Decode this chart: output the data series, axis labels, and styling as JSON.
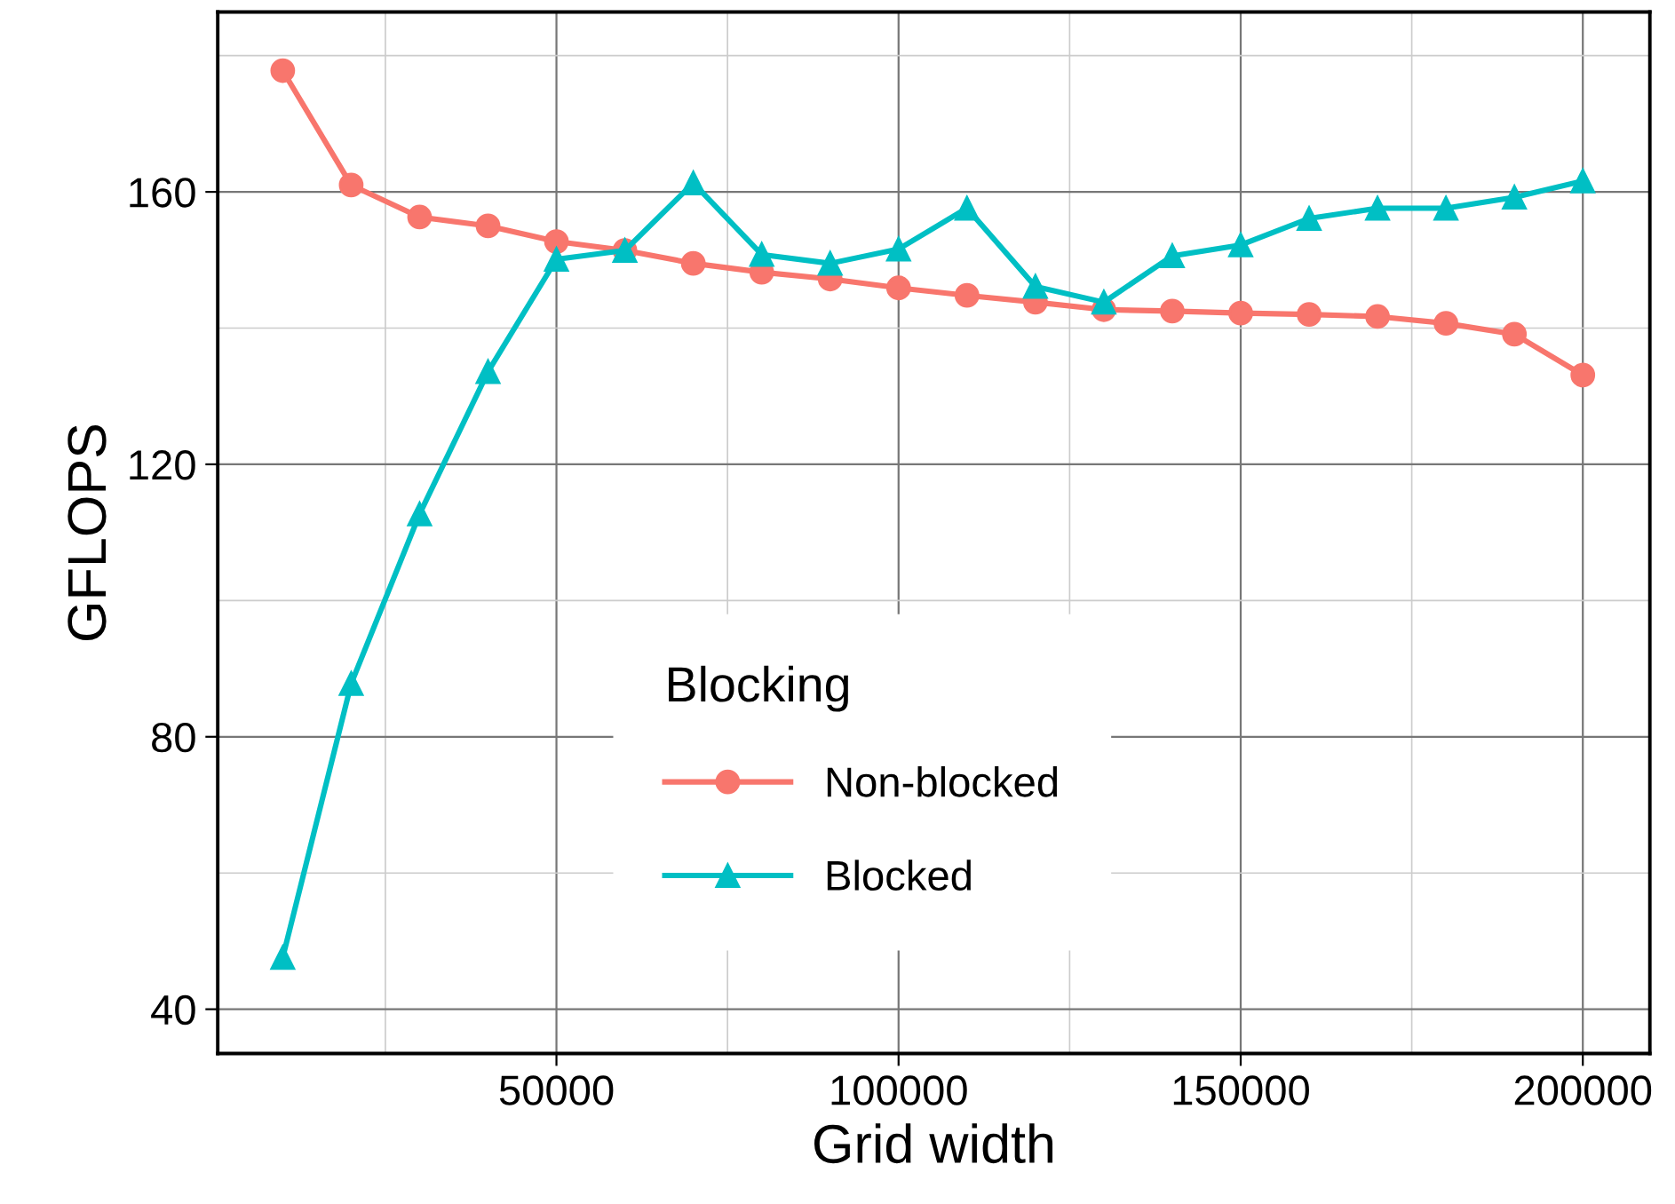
{
  "chart_data": {
    "type": "line",
    "xlabel": "Grid width",
    "ylabel": "GFLOPS",
    "legend_title": "Blocking",
    "x": [
      10000,
      20000,
      30000,
      40000,
      50000,
      60000,
      70000,
      80000,
      90000,
      100000,
      110000,
      120000,
      130000,
      140000,
      150000,
      160000,
      170000,
      180000,
      190000,
      200000
    ],
    "series": [
      {
        "name": "Non-blocked",
        "color": "#f8766d",
        "marker": "circle",
        "values": [
          177.8,
          161.0,
          156.3,
          155.0,
          152.7,
          151.4,
          149.5,
          148.2,
          147.2,
          145.9,
          144.8,
          143.8,
          142.7,
          142.5,
          142.2,
          142.0,
          141.7,
          140.7,
          139.1,
          133.1
        ]
      },
      {
        "name": "Blocked",
        "color": "#00bfc4",
        "marker": "triangle",
        "values": [
          47.6,
          87.8,
          112.7,
          133.6,
          150.1,
          151.4,
          161.3,
          150.8,
          149.5,
          151.6,
          157.6,
          146.1,
          143.8,
          150.6,
          152.2,
          156.1,
          157.6,
          157.6,
          159.2,
          161.6
        ]
      }
    ],
    "xlim": [
      500,
      209800
    ],
    "ylim": [
      33.5,
      186.4
    ],
    "xticks": [
      {
        "value": 25000,
        "label": null
      },
      50000,
      {
        "value": 75000,
        "label": null
      },
      100000,
      {
        "value": 125000,
        "label": null
      },
      150000,
      {
        "value": 175000,
        "label": null
      },
      200000
    ],
    "yticks": [
      40,
      {
        "value": 60,
        "label": null
      },
      80,
      {
        "value": 100,
        "label": null
      },
      120,
      {
        "value": 140,
        "label": null
      },
      160,
      {
        "value": 180,
        "label": null
      }
    ],
    "grid": true,
    "legend": "bottom",
    "line_style": "solid"
  }
}
